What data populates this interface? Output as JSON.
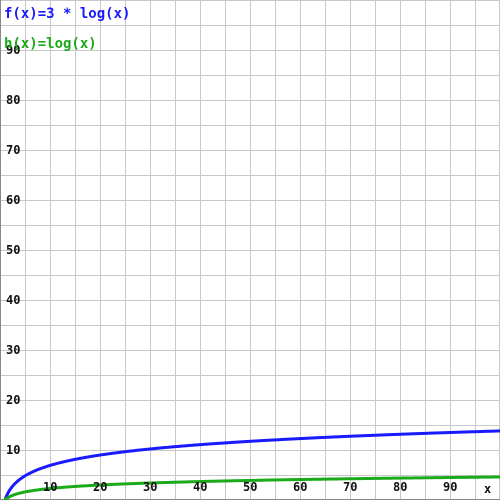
{
  "chart_data": {
    "type": "line",
    "xlabel": "x",
    "ylabel": "",
    "xlim": [
      0,
      99
    ],
    "ylim": [
      0,
      100
    ],
    "grid": true,
    "x_ticks": [
      10,
      20,
      30,
      40,
      50,
      60,
      70,
      80,
      90
    ],
    "y_ticks": [
      10,
      20,
      30,
      40,
      50,
      60,
      70,
      80,
      90
    ],
    "y_tick_labels": [
      "10",
      "20",
      "30",
      "40",
      "50",
      "60",
      "70",
      "80",
      "90"
    ],
    "x_tick_labels": [
      "10",
      "20",
      "30",
      "40",
      "50",
      "60",
      "70",
      "80",
      "90"
    ],
    "series": [
      {
        "name": "f(x)=3 * log(x)",
        "color": "#1a1aff",
        "x": [
          1,
          2,
          5,
          10,
          20,
          30,
          40,
          50,
          60,
          70,
          80,
          90,
          99
        ],
        "y": [
          0.0,
          2.08,
          4.83,
          6.91,
          8.99,
          10.2,
          11.07,
          11.74,
          12.28,
          12.75,
          13.15,
          13.5,
          13.79
        ]
      },
      {
        "name": "h(x)=log(x)",
        "color": "#1aaa1a",
        "x": [
          1,
          2,
          5,
          10,
          20,
          30,
          40,
          50,
          60,
          70,
          80,
          90,
          99
        ],
        "y": [
          0.0,
          0.69,
          1.61,
          2.3,
          3.0,
          3.4,
          3.69,
          3.91,
          4.09,
          4.25,
          4.38,
          4.5,
          4.6
        ]
      }
    ]
  }
}
